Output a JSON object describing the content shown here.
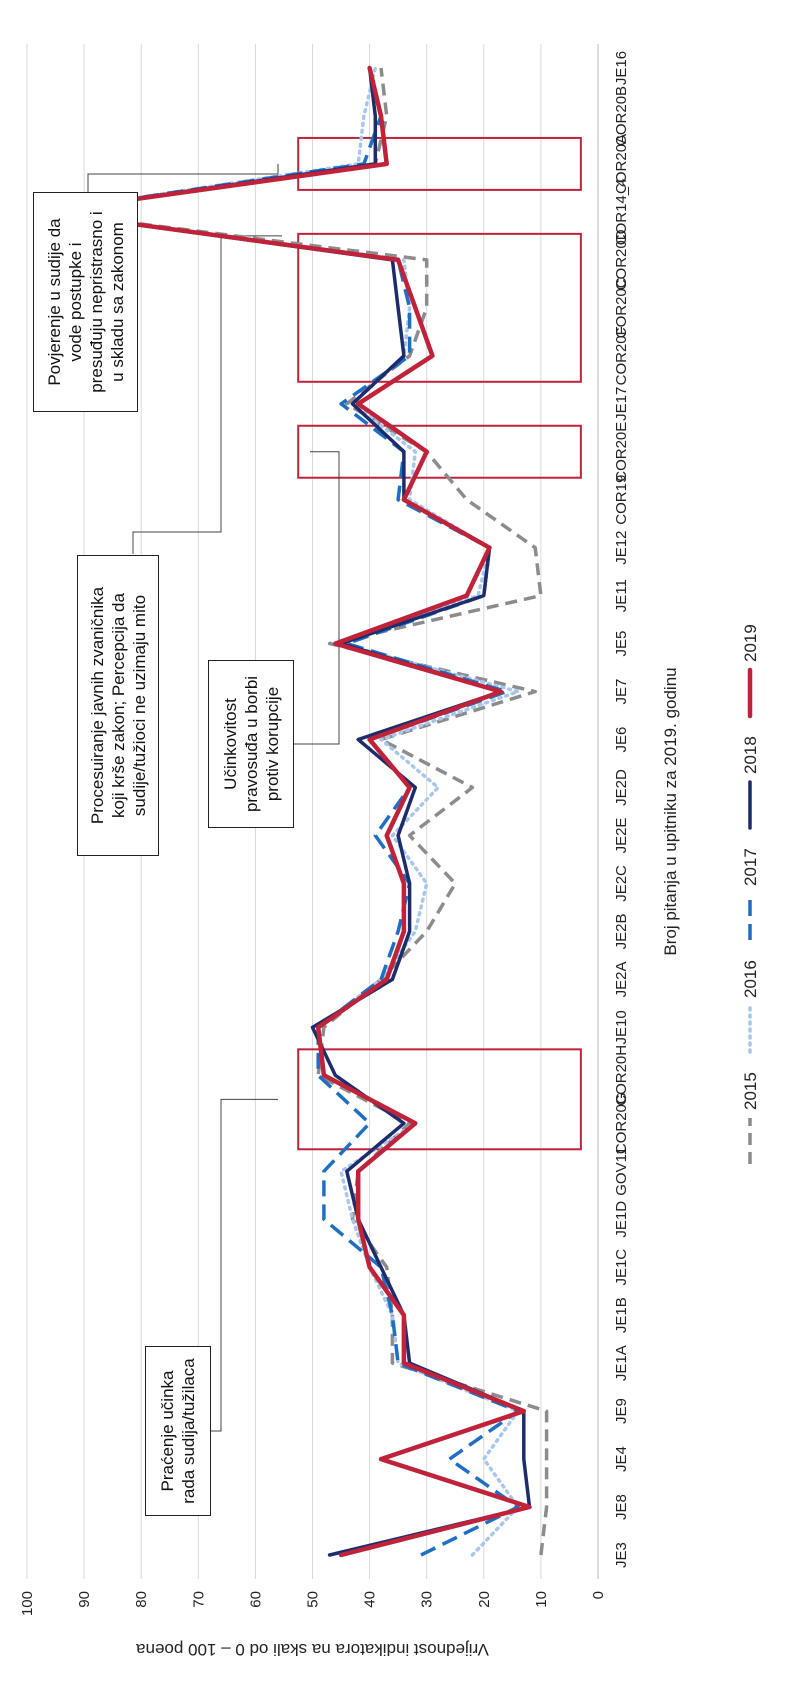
{
  "chart_data": {
    "type": "line",
    "title": "",
    "xlabel": "Broj pitanja u upitniku za 2019. godinu",
    "ylabel": "Vrijednost indikatora na skali od 0 – 100 poena",
    "ylim": [
      0,
      100
    ],
    "yticks": [
      0,
      10,
      20,
      30,
      40,
      50,
      60,
      70,
      80,
      90,
      100
    ],
    "grid": true,
    "legend_position": "bottom",
    "categories": [
      "JE3",
      "JE8",
      "JE4",
      "JE9",
      "JE1A",
      "JE1B",
      "JE1C",
      "JE1D",
      "GOV11",
      "COR20G",
      "COR20H",
      "JE10",
      "JE2A",
      "JE2B",
      "JE2C",
      "JE2E",
      "JE2D",
      "JE6",
      "JE7",
      "JE5",
      "JE11",
      "JE12",
      "COR19",
      "COR20E",
      "JE17",
      "COR20F",
      "COR20C",
      "COR20D",
      "COR14_4",
      "COR20A",
      "COR20B",
      "JE16"
    ],
    "series": [
      {
        "name": "2015",
        "color": "#8c8c8c",
        "style": "dash-gray",
        "values": [
          10,
          9,
          9,
          9,
          36,
          36,
          37,
          43,
          42,
          33,
          49,
          48,
          38,
          30,
          25,
          33,
          22,
          38,
          11,
          47,
          10,
          11,
          23,
          30,
          44,
          33,
          30,
          30,
          97,
          39,
          37,
          38
        ]
      },
      {
        "name": "2016",
        "color": "#a9c7ec",
        "style": "dot-light",
        "values": [
          22,
          14,
          20,
          14,
          35,
          36,
          40,
          43,
          45,
          32,
          48,
          49,
          38,
          32,
          30,
          36,
          28,
          38,
          14,
          45,
          21,
          19,
          33,
          32,
          43,
          34,
          33,
          34,
          97,
          42,
          41,
          39
        ]
      },
      {
        "name": "2017",
        "color": "#1e6fc4",
        "style": "dash-blue",
        "values": [
          31,
          14,
          26,
          14,
          35,
          36,
          38,
          48,
          48,
          40,
          49,
          49,
          38,
          35,
          33,
          39,
          33,
          40,
          16,
          44,
          20,
          19,
          35,
          34,
          45,
          33,
          33,
          35,
          97,
          41,
          38,
          40
        ]
      },
      {
        "name": "2018",
        "color": "#1d2d6b",
        "style": "solid-navy",
        "values": [
          47,
          12,
          13,
          13,
          33,
          34,
          38,
          42,
          44,
          34,
          46,
          50,
          36,
          33,
          33,
          35,
          32,
          42,
          17,
          45,
          20,
          19,
          34,
          34,
          43,
          34,
          35,
          36,
          97,
          39,
          39,
          40
        ]
      },
      {
        "name": "2019",
        "color": "#c0223a",
        "style": "solid-red",
        "values": [
          45,
          12,
          38,
          13,
          34,
          34,
          40,
          42,
          42,
          32,
          48,
          49,
          37,
          34,
          34,
          37,
          33,
          40,
          17,
          46,
          23,
          19,
          34,
          30,
          42,
          29,
          32,
          35,
          97,
          37,
          38,
          40
        ]
      }
    ],
    "highlight_groups": [
      {
        "from": "COR20G",
        "to": "COR20H",
        "color": "#c0223a"
      },
      {
        "from": "COR20E",
        "to": "COR20E",
        "color": "#c0223a"
      },
      {
        "from": "COR20F",
        "to": "COR20D",
        "color": "#c0223a"
      },
      {
        "from": "COR20A",
        "to": "COR20A",
        "color": "#c0223a"
      }
    ],
    "annotations": [
      {
        "name": "callout-pracenje",
        "text": "Praćenje učinka\nrada sudija/tužilaca",
        "target": "COR20G"
      },
      {
        "name": "callout-ucinkovitost",
        "text": "Učinkovitost\npravosuđa u borbi\nprotiv korupcije",
        "target": "COR20E"
      },
      {
        "name": "callout-procesuiranje",
        "text": "Procesuiranje javnih zvaničnika\nkoji krše zakon; Percepcija da\nsudije/tužioci ne uzimaju mito",
        "target": "COR20F"
      },
      {
        "name": "callout-povjerenje",
        "text": "Povjerenje u sudije da\nvode postupke i\npresuđuju nepristrasno i\nu skladu sa zakonom",
        "target": "COR20A"
      }
    ]
  }
}
